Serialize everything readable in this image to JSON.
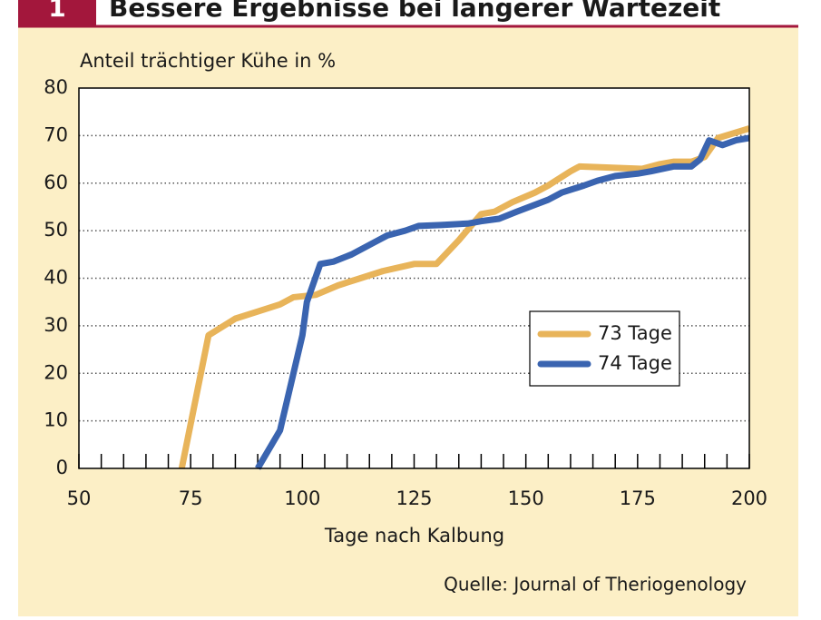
{
  "chart_data": {
    "type": "line",
    "figure_number": "1",
    "title": "Bessere Ergebnisse bei längerer Wartezeit",
    "y_axis_label": "Anteil trächtiger Kühe in %",
    "x_axis_label": "Tage nach Kalbung",
    "source": "Quelle: Journal of Theriogenology",
    "xlim": [
      50,
      200
    ],
    "xticks": [
      50,
      75,
      100,
      125,
      150,
      175,
      200
    ],
    "xminor_ticks": [
      55,
      60,
      65,
      70,
      80,
      85,
      90,
      95,
      105,
      110,
      115,
      120,
      130,
      135,
      140,
      145,
      155,
      160,
      165,
      170,
      180,
      185,
      190,
      195
    ],
    "ylim": [
      0,
      80
    ],
    "yticks": [
      0,
      10,
      20,
      30,
      40,
      50,
      60,
      70,
      80
    ],
    "grid": true,
    "legend": "right",
    "series": [
      {
        "name": "73 Tage",
        "color": "#e8b45a",
        "x": [
          73,
          79,
          85,
          90,
          95,
          98,
          103,
          108,
          113,
          118,
          125,
          130,
          135,
          140,
          143,
          147,
          152,
          155,
          160,
          162,
          168,
          176,
          180,
          183,
          187,
          190,
          193,
          200
        ],
        "values": [
          0,
          28,
          31.5,
          33,
          34.5,
          36,
          36.5,
          38.5,
          40,
          41.5,
          43,
          43,
          48,
          53.5,
          54,
          56,
          58,
          59.5,
          62.5,
          63.5,
          63.3,
          63,
          64,
          64.5,
          64.5,
          65.5,
          69.5,
          71.5
        ]
      },
      {
        "name": "74 Tage",
        "color": "#3a64b0",
        "x": [
          90,
          95,
          98,
          100,
          101,
          104,
          107,
          111,
          116,
          119,
          123,
          126,
          131,
          137,
          140,
          144,
          148,
          155,
          158,
          163,
          166,
          170,
          175,
          178,
          183,
          187,
          189,
          191,
          194,
          197,
          200
        ],
        "values": [
          0,
          8,
          20,
          28,
          35,
          43,
          43.5,
          45,
          47.5,
          49,
          50,
          51,
          51.2,
          51.5,
          52,
          52.5,
          54,
          56.5,
          58,
          59.5,
          60.5,
          61.5,
          62,
          62.5,
          63.5,
          63.5,
          65,
          69,
          68,
          69,
          69.5
        ]
      }
    ]
  }
}
